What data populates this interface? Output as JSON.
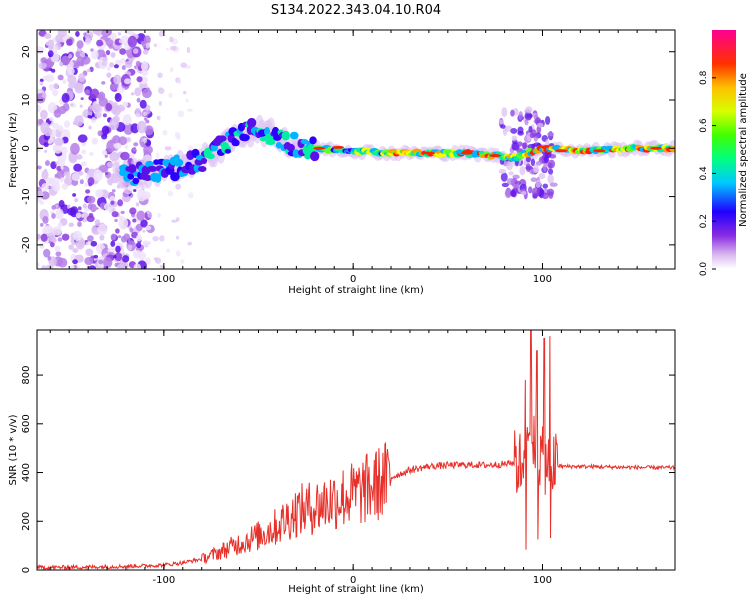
{
  "title": "S134.2022.343.04.10.R04",
  "chart_data": [
    {
      "type": "heatmap",
      "xlabel": "Height of straight line (km)",
      "ylabel": "Frequency (Hz)",
      "xlim": [
        -167,
        170
      ],
      "ylim": [
        -25,
        24.5
      ],
      "xticks": [
        -100,
        0,
        100
      ],
      "yticks": [
        -20,
        -10,
        0,
        10,
        20
      ],
      "colorbar": {
        "label": "Normalized spectral amplitude",
        "range": [
          0,
          1
        ],
        "ticks": [
          0.0,
          0.2,
          0.4,
          0.6,
          0.8
        ]
      },
      "ridge": {
        "description_points_x": [
          -120,
          -100,
          -80,
          -60,
          -50,
          -40,
          -30,
          -20,
          0,
          20,
          40,
          60,
          75,
          85,
          92,
          100,
          120,
          150,
          170
        ],
        "frequency_hz": [
          -5.5,
          -4.5,
          -2.5,
          2.5,
          4,
          2.5,
          0.5,
          0,
          -0.5,
          -1,
          -1,
          -1,
          -1.5,
          -2,
          -1,
          0,
          -0.5,
          0,
          0
        ]
      }
    },
    {
      "type": "line",
      "xlabel": "Height of straight line (km)",
      "ylabel": "SNR (10 * v/v)",
      "xlim": [
        -167,
        170
      ],
      "ylim": [
        0,
        985
      ],
      "xticks": [
        -100,
        0,
        100
      ],
      "yticks": [
        0,
        200,
        400,
        600,
        800
      ],
      "series": [
        {
          "name": "SNR",
          "color": "#e8302a",
          "x": [
            -167,
            -140,
            -120,
            -100,
            -90,
            -80,
            -70,
            -60,
            -50,
            -40,
            -30,
            -20,
            -10,
            0,
            10,
            20,
            30,
            40,
            50,
            60,
            70,
            80,
            85,
            88,
            92,
            95,
            98,
            100,
            103,
            106,
            110,
            120,
            140,
            160,
            170
          ],
          "y": [
            10,
            12,
            15,
            20,
            30,
            45,
            75,
            110,
            140,
            180,
            240,
            260,
            290,
            310,
            340,
            380,
            410,
            425,
            430,
            432,
            430,
            435,
            440,
            430,
            500,
            520,
            480,
            450,
            440,
            430,
            425,
            425,
            422,
            420,
            420
          ]
        }
      ],
      "annotations": {
        "spikes": [
          {
            "x": 91,
            "y": 780
          },
          {
            "x": 94,
            "y": 985
          },
          {
            "x": 97,
            "y": 900
          },
          {
            "x": 101,
            "y": 950
          },
          {
            "x": 104,
            "y": 960
          }
        ]
      }
    }
  ],
  "colors": {
    "line": "#e8302a",
    "axis": "#000000"
  }
}
